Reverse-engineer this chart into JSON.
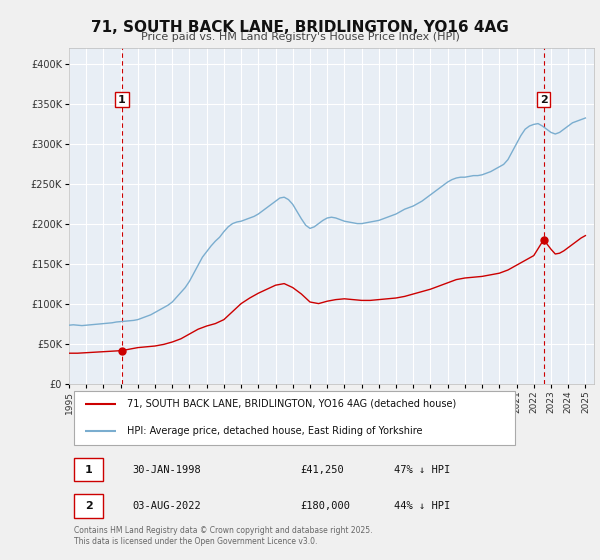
{
  "title": "71, SOUTH BACK LANE, BRIDLINGTON, YO16 4AG",
  "subtitle": "Price paid vs. HM Land Registry's House Price Index (HPI)",
  "legend_line1": "71, SOUTH BACK LANE, BRIDLINGTON, YO16 4AG (detached house)",
  "legend_line2": "HPI: Average price, detached house, East Riding of Yorkshire",
  "footnote": "Contains HM Land Registry data © Crown copyright and database right 2025.\nThis data is licensed under the Open Government Licence v3.0.",
  "price_color": "#cc0000",
  "hpi_color": "#7aadcf",
  "vline_color": "#cc0000",
  "marker1_date": 1998.08,
  "marker1_value": 41250,
  "marker2_date": 2022.58,
  "marker2_value": 180000,
  "annotation1_label": "1",
  "annotation2_label": "2",
  "table_row1": [
    "1",
    "30-JAN-1998",
    "£41,250",
    "47% ↓ HPI"
  ],
  "table_row2": [
    "2",
    "03-AUG-2022",
    "£180,000",
    "44% ↓ HPI"
  ],
  "hpi_data": [
    [
      1995.0,
      73000
    ],
    [
      1995.25,
      73500
    ],
    [
      1995.5,
      73000
    ],
    [
      1995.75,
      72500
    ],
    [
      1996.0,
      73000
    ],
    [
      1996.25,
      73500
    ],
    [
      1996.5,
      74000
    ],
    [
      1996.75,
      74500
    ],
    [
      1997.0,
      75000
    ],
    [
      1997.25,
      75500
    ],
    [
      1997.5,
      76000
    ],
    [
      1997.75,
      77000
    ],
    [
      1998.0,
      77500
    ],
    [
      1998.25,
      78000
    ],
    [
      1998.5,
      78500
    ],
    [
      1998.75,
      79000
    ],
    [
      1999.0,
      80000
    ],
    [
      1999.25,
      82000
    ],
    [
      1999.5,
      84000
    ],
    [
      1999.75,
      86000
    ],
    [
      2000.0,
      89000
    ],
    [
      2000.25,
      92000
    ],
    [
      2000.5,
      95000
    ],
    [
      2000.75,
      98000
    ],
    [
      2001.0,
      102000
    ],
    [
      2001.25,
      108000
    ],
    [
      2001.5,
      114000
    ],
    [
      2001.75,
      120000
    ],
    [
      2002.0,
      128000
    ],
    [
      2002.25,
      138000
    ],
    [
      2002.5,
      148000
    ],
    [
      2002.75,
      158000
    ],
    [
      2003.0,
      165000
    ],
    [
      2003.25,
      172000
    ],
    [
      2003.5,
      178000
    ],
    [
      2003.75,
      183000
    ],
    [
      2004.0,
      190000
    ],
    [
      2004.25,
      196000
    ],
    [
      2004.5,
      200000
    ],
    [
      2004.75,
      202000
    ],
    [
      2005.0,
      203000
    ],
    [
      2005.25,
      205000
    ],
    [
      2005.5,
      207000
    ],
    [
      2005.75,
      209000
    ],
    [
      2006.0,
      212000
    ],
    [
      2006.25,
      216000
    ],
    [
      2006.5,
      220000
    ],
    [
      2006.75,
      224000
    ],
    [
      2007.0,
      228000
    ],
    [
      2007.25,
      232000
    ],
    [
      2007.5,
      233000
    ],
    [
      2007.75,
      230000
    ],
    [
      2008.0,
      224000
    ],
    [
      2008.25,
      215000
    ],
    [
      2008.5,
      206000
    ],
    [
      2008.75,
      198000
    ],
    [
      2009.0,
      194000
    ],
    [
      2009.25,
      196000
    ],
    [
      2009.5,
      200000
    ],
    [
      2009.75,
      204000
    ],
    [
      2010.0,
      207000
    ],
    [
      2010.25,
      208000
    ],
    [
      2010.5,
      207000
    ],
    [
      2010.75,
      205000
    ],
    [
      2011.0,
      203000
    ],
    [
      2011.25,
      202000
    ],
    [
      2011.5,
      201000
    ],
    [
      2011.75,
      200000
    ],
    [
      2012.0,
      200000
    ],
    [
      2012.25,
      201000
    ],
    [
      2012.5,
      202000
    ],
    [
      2012.75,
      203000
    ],
    [
      2013.0,
      204000
    ],
    [
      2013.25,
      206000
    ],
    [
      2013.5,
      208000
    ],
    [
      2013.75,
      210000
    ],
    [
      2014.0,
      212000
    ],
    [
      2014.25,
      215000
    ],
    [
      2014.5,
      218000
    ],
    [
      2014.75,
      220000
    ],
    [
      2015.0,
      222000
    ],
    [
      2015.25,
      225000
    ],
    [
      2015.5,
      228000
    ],
    [
      2015.75,
      232000
    ],
    [
      2016.0,
      236000
    ],
    [
      2016.25,
      240000
    ],
    [
      2016.5,
      244000
    ],
    [
      2016.75,
      248000
    ],
    [
      2017.0,
      252000
    ],
    [
      2017.25,
      255000
    ],
    [
      2017.5,
      257000
    ],
    [
      2017.75,
      258000
    ],
    [
      2018.0,
      258000
    ],
    [
      2018.25,
      259000
    ],
    [
      2018.5,
      260000
    ],
    [
      2018.75,
      260000
    ],
    [
      2019.0,
      261000
    ],
    [
      2019.25,
      263000
    ],
    [
      2019.5,
      265000
    ],
    [
      2019.75,
      268000
    ],
    [
      2020.0,
      271000
    ],
    [
      2020.25,
      274000
    ],
    [
      2020.5,
      280000
    ],
    [
      2020.75,
      290000
    ],
    [
      2021.0,
      300000
    ],
    [
      2021.25,
      310000
    ],
    [
      2021.5,
      318000
    ],
    [
      2021.75,
      322000
    ],
    [
      2022.0,
      324000
    ],
    [
      2022.25,
      325000
    ],
    [
      2022.5,
      322000
    ],
    [
      2022.75,
      318000
    ],
    [
      2023.0,
      314000
    ],
    [
      2023.25,
      312000
    ],
    [
      2023.5,
      314000
    ],
    [
      2023.75,
      318000
    ],
    [
      2024.0,
      322000
    ],
    [
      2024.25,
      326000
    ],
    [
      2024.5,
      328000
    ],
    [
      2024.75,
      330000
    ],
    [
      2025.0,
      332000
    ]
  ],
  "price_data": [
    [
      1995.0,
      38000
    ],
    [
      1995.5,
      38000
    ],
    [
      1998.08,
      41250
    ],
    [
      1998.5,
      43000
    ],
    [
      1999.0,
      45000
    ],
    [
      1999.5,
      46000
    ],
    [
      2000.0,
      47000
    ],
    [
      2000.5,
      49000
    ],
    [
      2001.0,
      52000
    ],
    [
      2001.5,
      56000
    ],
    [
      2002.0,
      62000
    ],
    [
      2002.5,
      68000
    ],
    [
      2003.0,
      72000
    ],
    [
      2003.5,
      75000
    ],
    [
      2004.0,
      80000
    ],
    [
      2004.5,
      90000
    ],
    [
      2005.0,
      100000
    ],
    [
      2005.5,
      107000
    ],
    [
      2006.0,
      113000
    ],
    [
      2006.5,
      118000
    ],
    [
      2007.0,
      123000
    ],
    [
      2007.5,
      125000
    ],
    [
      2008.0,
      120000
    ],
    [
      2008.5,
      112000
    ],
    [
      2009.0,
      102000
    ],
    [
      2009.5,
      100000
    ],
    [
      2010.0,
      103000
    ],
    [
      2010.5,
      105000
    ],
    [
      2011.0,
      106000
    ],
    [
      2011.5,
      105000
    ],
    [
      2012.0,
      104000
    ],
    [
      2012.5,
      104000
    ],
    [
      2013.0,
      105000
    ],
    [
      2013.5,
      106000
    ],
    [
      2014.0,
      107000
    ],
    [
      2014.5,
      109000
    ],
    [
      2015.0,
      112000
    ],
    [
      2015.5,
      115000
    ],
    [
      2016.0,
      118000
    ],
    [
      2016.5,
      122000
    ],
    [
      2017.0,
      126000
    ],
    [
      2017.5,
      130000
    ],
    [
      2018.0,
      132000
    ],
    [
      2018.5,
      133000
    ],
    [
      2019.0,
      134000
    ],
    [
      2019.5,
      136000
    ],
    [
      2020.0,
      138000
    ],
    [
      2020.5,
      142000
    ],
    [
      2021.0,
      148000
    ],
    [
      2021.5,
      154000
    ],
    [
      2022.0,
      160000
    ],
    [
      2022.58,
      180000
    ],
    [
      2022.75,
      175000
    ],
    [
      2023.0,
      168000
    ],
    [
      2023.25,
      162000
    ],
    [
      2023.5,
      163000
    ],
    [
      2023.75,
      166000
    ],
    [
      2024.0,
      170000
    ],
    [
      2024.25,
      174000
    ],
    [
      2024.5,
      178000
    ],
    [
      2024.75,
      182000
    ],
    [
      2025.0,
      185000
    ]
  ],
  "xlim": [
    1995,
    2025.5
  ],
  "ylim": [
    0,
    420000
  ],
  "yticks": [
    0,
    50000,
    100000,
    150000,
    200000,
    250000,
    300000,
    350000,
    400000
  ],
  "xticks": [
    1995,
    1996,
    1997,
    1998,
    1999,
    2000,
    2001,
    2002,
    2003,
    2004,
    2005,
    2006,
    2007,
    2008,
    2009,
    2010,
    2011,
    2012,
    2013,
    2014,
    2015,
    2016,
    2017,
    2018,
    2019,
    2020,
    2021,
    2022,
    2023,
    2024,
    2025
  ],
  "bg_color": "#f0f0f0",
  "plot_bg": "#e8eef5",
  "grid_color": "#ffffff"
}
